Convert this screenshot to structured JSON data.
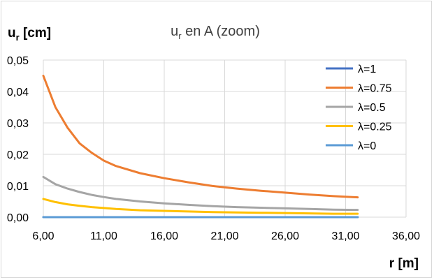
{
  "chart_data": {
    "type": "line",
    "title": "u",
    "title_sub": "r",
    "title_rest": " en A (zoom)",
    "ylabel_main": "u",
    "ylabel_sub": "r",
    "ylabel_rest": " [cm]",
    "xlabel": "r [m]",
    "xlim": [
      6,
      36
    ],
    "ylim": [
      0,
      0.05
    ],
    "x_ticks": [
      6,
      11,
      16,
      21,
      26,
      31,
      36
    ],
    "x_tick_labels": [
      "6,00",
      "11,00",
      "16,00",
      "21,00",
      "26,00",
      "31,00",
      "36,00"
    ],
    "y_ticks": [
      0,
      0.01,
      0.02,
      0.03,
      0.04,
      0.05
    ],
    "y_tick_labels": [
      "0,00",
      "0,01",
      "0,02",
      "0,03",
      "0,04",
      "0,05"
    ],
    "grid": true,
    "legend_position": "right",
    "series": [
      {
        "name": "λ=1",
        "color": "#4472c4",
        "x": [
          6,
          7,
          8,
          9,
          10,
          12,
          14,
          16,
          18,
          20,
          22,
          24,
          26,
          28,
          30,
          32
        ],
        "y": [
          0,
          0,
          0,
          0,
          0,
          0,
          0,
          0,
          0,
          0,
          0,
          0,
          0,
          0,
          0,
          0
        ]
      },
      {
        "name": "λ=0.75",
        "color": "#ed7d31",
        "x": [
          6,
          7,
          8,
          9,
          10,
          11,
          12,
          14,
          16,
          18,
          20,
          22,
          24,
          26,
          28,
          30,
          32
        ],
        "y": [
          0.045,
          0.035,
          0.0285,
          0.0235,
          0.0205,
          0.018,
          0.0163,
          0.014,
          0.0124,
          0.0111,
          0.0099,
          0.0091,
          0.0084,
          0.0078,
          0.0072,
          0.0067,
          0.0063
        ]
      },
      {
        "name": "λ=0.5",
        "color": "#a5a5a5",
        "x": [
          6,
          7,
          8,
          9,
          10,
          11,
          12,
          14,
          16,
          18,
          20,
          22,
          24,
          26,
          28,
          30,
          32
        ],
        "y": [
          0.0128,
          0.0105,
          0.0091,
          0.008,
          0.0071,
          0.0064,
          0.0058,
          0.005,
          0.0044,
          0.0039,
          0.0035,
          0.0032,
          0.003,
          0.0028,
          0.0026,
          0.0024,
          0.0023
        ]
      },
      {
        "name": "λ=0.25",
        "color": "#ffc000",
        "x": [
          6,
          7,
          8,
          9,
          10,
          11,
          12,
          14,
          16,
          18,
          20,
          22,
          24,
          26,
          28,
          30,
          32
        ],
        "y": [
          0.0058,
          0.0048,
          0.0041,
          0.0036,
          0.0032,
          0.0029,
          0.0026,
          0.0022,
          0.002,
          0.0018,
          0.0016,
          0.0015,
          0.0014,
          0.0013,
          0.0012,
          0.0011,
          0.0011
        ]
      },
      {
        "name": "λ=0",
        "color": "#5b9bd5",
        "x": [
          6,
          8,
          10,
          12,
          14,
          16,
          18,
          20,
          22,
          24,
          26,
          28,
          30,
          32
        ],
        "y": [
          0,
          0,
          0,
          0,
          0,
          0,
          0,
          0,
          0,
          0,
          0,
          0,
          0,
          0
        ]
      }
    ]
  }
}
